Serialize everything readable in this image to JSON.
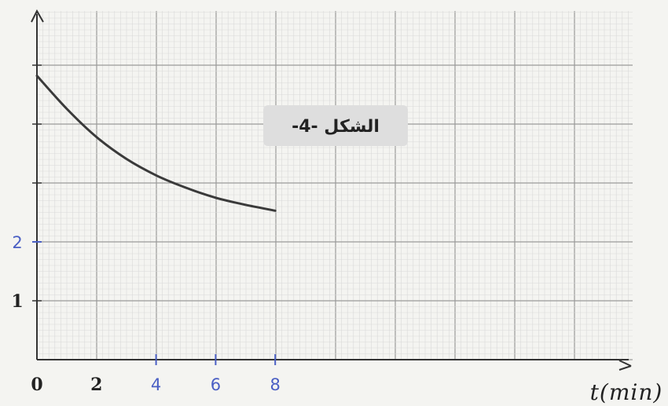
{
  "figure": {
    "caption": "الشكل -4-"
  },
  "colors": {
    "paper": "#f4f4f1",
    "grid_minor": "#d9d9d9",
    "grid_major": "#9a9a9a",
    "axis": "#333333",
    "curve": "#3a3a3a",
    "handwriting": "#4a5fc4",
    "caption_box": "#dedede"
  },
  "chart_data": {
    "type": "line",
    "title": "",
    "xlabel": "t(min)",
    "ylabel": "",
    "xlim": [
      0,
      20
    ],
    "ylim": [
      0,
      5.5
    ],
    "grid": true,
    "x_ticks": [
      {
        "value": 0,
        "label": "0",
        "style": "printed"
      },
      {
        "value": 2,
        "label": "2",
        "style": "printed"
      },
      {
        "value": 4,
        "label": "4",
        "style": "handwritten"
      },
      {
        "value": 6,
        "label": "6",
        "style": "handwritten"
      },
      {
        "value": 8,
        "label": "8",
        "style": "handwritten"
      }
    ],
    "y_ticks": [
      {
        "value": 1,
        "label": "1",
        "style": "printed"
      },
      {
        "value": 2,
        "label": "2",
        "style": "handwritten"
      },
      {
        "value": 3,
        "label": "",
        "style": "none"
      },
      {
        "value": 4,
        "label": "",
        "style": "none"
      },
      {
        "value": 5,
        "label": "",
        "style": "none"
      }
    ],
    "series": [
      {
        "x": [
          0,
          1,
          2,
          3,
          4,
          5,
          6,
          7,
          8
        ],
        "y": [
          4.82,
          4.26,
          3.78,
          3.41,
          3.13,
          2.92,
          2.75,
          2.63,
          2.53
        ]
      }
    ]
  }
}
